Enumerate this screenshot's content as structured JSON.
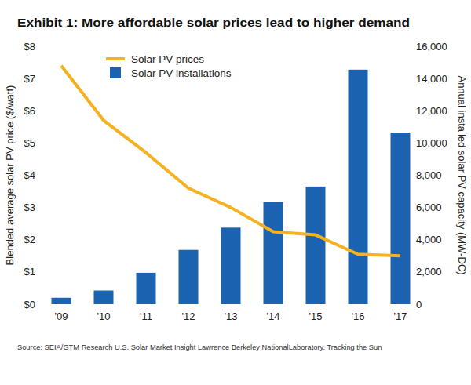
{
  "chart_data": {
    "type": "combo",
    "title": "Exhibit 1: More affordable solar prices lead to higher demand",
    "y_label": "Blended average solar PV price ($/watt)",
    "y2_label": "Annual installed solar PV capacity (MW-DC)",
    "source": "Source: SEIA/GTM Research U.S. Solar Market Insight Lawrence Berkeley NationalLaboratory, Tracking the Sun",
    "categories": [
      "'09",
      "'10",
      "'11",
      "'12",
      "'13",
      "'14",
      "'15",
      "'16",
      "'17"
    ],
    "series": [
      {
        "name": "Solar PV prices",
        "type": "line",
        "axis": "y",
        "color": "#f5b120",
        "values": [
          7.4,
          5.7,
          4.7,
          3.6,
          3.0,
          2.25,
          2.15,
          1.55,
          1.5
        ]
      },
      {
        "name": "Solar PV installations",
        "type": "bar",
        "axis": "y2",
        "color": "#1b63b0",
        "values": [
          400,
          850,
          1950,
          3370,
          4750,
          6350,
          7300,
          14550,
          10650
        ]
      }
    ],
    "ylim": [
      0,
      8
    ],
    "yticks": [
      {
        "value": 0,
        "label": "$0"
      },
      {
        "value": 1,
        "label": "$1"
      },
      {
        "value": 2,
        "label": "$2"
      },
      {
        "value": 3,
        "label": "$3"
      },
      {
        "value": 4,
        "label": "$4"
      },
      {
        "value": 5,
        "label": "$5"
      },
      {
        "value": 6,
        "label": "$6"
      },
      {
        "value": 7,
        "label": "$7"
      },
      {
        "value": 8,
        "label": "$8"
      }
    ],
    "y2lim": [
      0,
      16000
    ],
    "y2ticks": [
      0,
      {
        "value": 2000,
        "label": "2,000"
      },
      {
        "value": 4000,
        "label": "4,000"
      },
      {
        "value": 6000,
        "label": "6,000"
      },
      {
        "value": 8000,
        "label": "8,000"
      },
      {
        "value": 10000,
        "label": "10,000"
      },
      {
        "value": 12000,
        "label": "12,000"
      },
      {
        "value": 14000,
        "label": "14,000"
      },
      {
        "value": 16000,
        "label": "16,000"
      }
    ],
    "grid": false,
    "legend": "top-left"
  }
}
